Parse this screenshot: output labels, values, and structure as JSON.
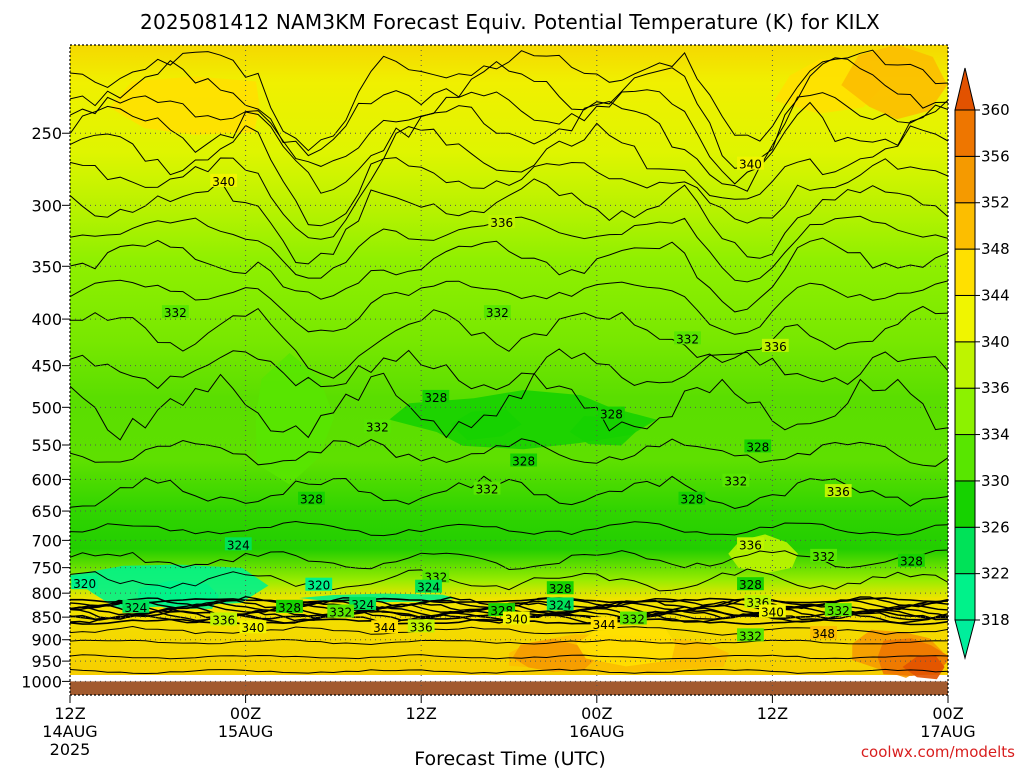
{
  "chart_data": {
    "type": "heatmap",
    "subtype": "filled-contour time-height cross section",
    "title": "2025081412 NAM3KM Forecast Equiv. Potential Temperature (K) for KILX",
    "xlabel": "Forecast Time (UTC)",
    "ylabel": "",
    "credit": "coolwx.com/modelts",
    "y_scale": "log",
    "ylim": [
      1035,
      200
    ],
    "xlim": [
      0,
      60
    ],
    "x_unit": "hours from 12Z 14AUG 2025",
    "y_ticks": [
      250,
      300,
      350,
      400,
      450,
      500,
      550,
      600,
      650,
      700,
      750,
      800,
      850,
      900,
      950,
      1000
    ],
    "x_ticks": [
      {
        "hour": 0,
        "lines": [
          "12Z",
          "14AUG",
          "2025"
        ]
      },
      {
        "hour": 12,
        "lines": [
          "00Z",
          "15AUG"
        ]
      },
      {
        "hour": 24,
        "lines": [
          "12Z"
        ]
      },
      {
        "hour": 36,
        "lines": [
          "00Z",
          "16AUG"
        ]
      },
      {
        "hour": 48,
        "lines": [
          "12Z"
        ]
      },
      {
        "hour": 60,
        "lines": [
          "00Z",
          "17AUG"
        ]
      }
    ],
    "grid": true,
    "ground_pressure": 1000,
    "colorbar": {
      "labels": [
        "318",
        "322",
        "326",
        "330",
        "334",
        "336",
        "340",
        "344",
        "348",
        "352",
        "356",
        "360"
      ],
      "bins": [
        {
          "from": 318,
          "to": 322,
          "color": "#00f28a"
        },
        {
          "from": 322,
          "to": 326,
          "color": "#00e258"
        },
        {
          "from": 326,
          "to": 330,
          "color": "#16d200"
        },
        {
          "from": 330,
          "to": 334,
          "color": "#58e600"
        },
        {
          "from": 334,
          "to": 336,
          "color": "#8cf200"
        },
        {
          "from": 336,
          "to": 340,
          "color": "#bef400"
        },
        {
          "from": 340,
          "to": 344,
          "color": "#f0f500"
        },
        {
          "from": 344,
          "to": 348,
          "color": "#ffe000"
        },
        {
          "from": 348,
          "to": 352,
          "color": "#fcbe00"
        },
        {
          "from": 352,
          "to": 356,
          "color": "#f59a00"
        },
        {
          "from": 356,
          "to": 360,
          "color": "#ee7600"
        },
        {
          "from": 360,
          "to": 364,
          "color": "#e25200"
        }
      ],
      "under_color": "#00ee9c",
      "over_color": "#e25200"
    },
    "colors": {
      "ground": "#a25a2e",
      "grid": "#555555",
      "contour": "#000000",
      "credit": "#d81e1e"
    },
    "bands": [
      {
        "level": "upper",
        "hour": [
          0,
          60
        ],
        "pressure": [
          200,
          260
        ],
        "value": 344
      },
      {
        "level": "upper",
        "hour": [
          0,
          60
        ],
        "pressure": [
          260,
          320
        ],
        "value": 340
      },
      {
        "level": "mid",
        "hour": [
          0,
          60
        ],
        "pressure": [
          320,
          430
        ],
        "value": 336
      },
      {
        "level": "mid",
        "hour": [
          0,
          60
        ],
        "pressure": [
          430,
          700
        ],
        "value": 332
      },
      {
        "level": "low",
        "hour": [
          0,
          12
        ],
        "pressure": [
          700,
          830
        ],
        "value": 322
      },
      {
        "level": "low",
        "hour": [
          12,
          60
        ],
        "pressure": [
          700,
          830
        ],
        "value": 330
      },
      {
        "level": "boundary",
        "hour": [
          0,
          60
        ],
        "pressure": [
          830,
          1000
        ],
        "value": 344
      }
    ],
    "contour_labels": [
      {
        "text": "340",
        "hour": 10.5,
        "p": 282
      },
      {
        "text": "340",
        "hour": 46.5,
        "p": 270
      },
      {
        "text": "336",
        "hour": 29.5,
        "p": 313
      },
      {
        "text": "332",
        "hour": 7.2,
        "p": 393
      },
      {
        "text": "332",
        "hour": 29.2,
        "p": 393
      },
      {
        "text": "332",
        "hour": 42.2,
        "p": 420
      },
      {
        "text": "336",
        "hour": 48.2,
        "p": 428
      },
      {
        "text": "328",
        "hour": 25.0,
        "p": 487
      },
      {
        "text": "328",
        "hour": 37.0,
        "p": 508
      },
      {
        "text": "332",
        "hour": 21.0,
        "p": 525
      },
      {
        "text": "328",
        "hour": 47.0,
        "p": 552
      },
      {
        "text": "328",
        "hour": 31.0,
        "p": 572
      },
      {
        "text": "332",
        "hour": 28.5,
        "p": 614
      },
      {
        "text": "332",
        "hour": 45.5,
        "p": 602
      },
      {
        "text": "336",
        "hour": 52.5,
        "p": 618
      },
      {
        "text": "328",
        "hour": 16.5,
        "p": 630
      },
      {
        "text": "328",
        "hour": 42.5,
        "p": 630
      },
      {
        "text": "324",
        "hour": 11.5,
        "p": 707
      },
      {
        "text": "336",
        "hour": 46.5,
        "p": 707
      },
      {
        "text": "332",
        "hour": 51.5,
        "p": 728
      },
      {
        "text": "328",
        "hour": 57.5,
        "p": 737
      },
      {
        "text": "332",
        "hour": 25.0,
        "p": 767
      },
      {
        "text": "320",
        "hour": 1.0,
        "p": 780
      },
      {
        "text": "320",
        "hour": 17.0,
        "p": 783
      },
      {
        "text": "324",
        "hour": 24.5,
        "p": 787
      },
      {
        "text": "328",
        "hour": 33.5,
        "p": 790
      },
      {
        "text": "328",
        "hour": 46.5,
        "p": 782
      },
      {
        "text": "336",
        "hour": 47.0,
        "p": 818
      },
      {
        "text": "324",
        "hour": 4.5,
        "p": 828
      },
      {
        "text": "324",
        "hour": 20.0,
        "p": 822
      },
      {
        "text": "324",
        "hour": 33.5,
        "p": 823
      },
      {
        "text": "328",
        "hour": 15.0,
        "p": 828
      },
      {
        "text": "328",
        "hour": 29.5,
        "p": 835
      },
      {
        "text": "332",
        "hour": 18.5,
        "p": 838
      },
      {
        "text": "340",
        "hour": 48.0,
        "p": 838
      },
      {
        "text": "332",
        "hour": 52.5,
        "p": 835
      },
      {
        "text": "336",
        "hour": 10.5,
        "p": 855
      },
      {
        "text": "340",
        "hour": 30.5,
        "p": 853
      },
      {
        "text": "332",
        "hour": 38.5,
        "p": 853
      },
      {
        "text": "340",
        "hour": 12.5,
        "p": 872
      },
      {
        "text": "344",
        "hour": 21.5,
        "p": 872
      },
      {
        "text": "336",
        "hour": 24.0,
        "p": 870
      },
      {
        "text": "344",
        "hour": 36.5,
        "p": 865
      },
      {
        "text": "332",
        "hour": 46.5,
        "p": 890
      },
      {
        "text": "348",
        "hour": 51.5,
        "p": 885
      }
    ]
  }
}
